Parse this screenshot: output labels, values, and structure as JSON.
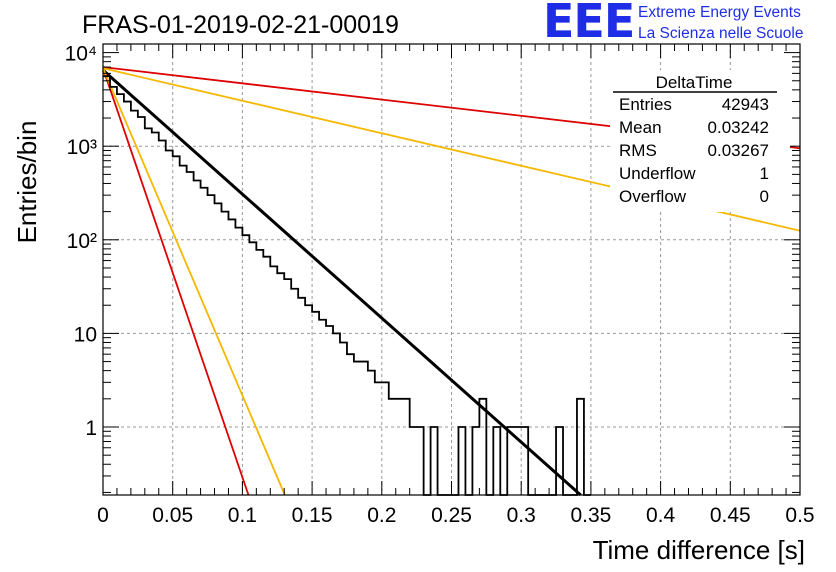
{
  "chart_data": {
    "type": "histogram",
    "title": "FRAS-01-2019-02-21-00019",
    "xlabel": "Time difference [s]",
    "ylabel": "Entries/bin",
    "xlim": [
      0,
      0.5
    ],
    "ylim": [
      0.17,
      12000
    ],
    "yscale": "log",
    "grid": true,
    "x_tick_labels": [
      "0",
      "0.05",
      "0.1",
      "0.15",
      "0.2",
      "0.25",
      "0.3",
      "0.35",
      "0.4",
      "0.45",
      "0.5"
    ],
    "y_tick_labels": [
      "1",
      "10",
      "10²",
      "10³",
      "10⁴"
    ],
    "stats_box": {
      "title": "DeltaTime",
      "placement": "top-right",
      "rows": [
        {
          "label": "Entries",
          "value": "42943"
        },
        {
          "label": "Mean",
          "value": "0.03242"
        },
        {
          "label": "RMS",
          "value": "0.03267"
        },
        {
          "label": "Underflow",
          "value": "1"
        },
        {
          "label": "Overflow",
          "value": "0"
        }
      ]
    },
    "histogram": {
      "color": "#000000",
      "bin_width": 0.005,
      "bins": [
        {
          "x": 0.0,
          "count": 5600
        },
        {
          "x": 0.005,
          "count": 4300
        },
        {
          "x": 0.01,
          "count": 3600
        },
        {
          "x": 0.015,
          "count": 3000
        },
        {
          "x": 0.02,
          "count": 2400
        },
        {
          "x": 0.025,
          "count": 2050
        },
        {
          "x": 0.03,
          "count": 1550
        },
        {
          "x": 0.035,
          "count": 1400
        },
        {
          "x": 0.04,
          "count": 1150
        },
        {
          "x": 0.045,
          "count": 900
        },
        {
          "x": 0.05,
          "count": 780
        },
        {
          "x": 0.055,
          "count": 620
        },
        {
          "x": 0.06,
          "count": 530
        },
        {
          "x": 0.065,
          "count": 430
        },
        {
          "x": 0.07,
          "count": 360
        },
        {
          "x": 0.075,
          "count": 300
        },
        {
          "x": 0.08,
          "count": 245
        },
        {
          "x": 0.085,
          "count": 200
        },
        {
          "x": 0.09,
          "count": 165
        },
        {
          "x": 0.095,
          "count": 135
        },
        {
          "x": 0.1,
          "count": 112
        },
        {
          "x": 0.105,
          "count": 94
        },
        {
          "x": 0.11,
          "count": 78
        },
        {
          "x": 0.115,
          "count": 66
        },
        {
          "x": 0.12,
          "count": 52
        },
        {
          "x": 0.125,
          "count": 44
        },
        {
          "x": 0.13,
          "count": 38
        },
        {
          "x": 0.135,
          "count": 30
        },
        {
          "x": 0.14,
          "count": 24
        },
        {
          "x": 0.145,
          "count": 20
        },
        {
          "x": 0.15,
          "count": 17
        },
        {
          "x": 0.155,
          "count": 14
        },
        {
          "x": 0.16,
          "count": 12
        },
        {
          "x": 0.165,
          "count": 10
        },
        {
          "x": 0.17,
          "count": 8
        },
        {
          "x": 0.175,
          "count": 6
        },
        {
          "x": 0.18,
          "count": 5
        },
        {
          "x": 0.185,
          "count": 5
        },
        {
          "x": 0.19,
          "count": 4
        },
        {
          "x": 0.195,
          "count": 3
        },
        {
          "x": 0.2,
          "count": 3
        },
        {
          "x": 0.205,
          "count": 2
        },
        {
          "x": 0.21,
          "count": 2
        },
        {
          "x": 0.215,
          "count": 2
        },
        {
          "x": 0.22,
          "count": 1
        },
        {
          "x": 0.225,
          "count": 1
        },
        {
          "x": 0.23,
          "count": 0
        },
        {
          "x": 0.235,
          "count": 1
        },
        {
          "x": 0.24,
          "count": 0
        },
        {
          "x": 0.245,
          "count": 0
        },
        {
          "x": 0.25,
          "count": 0
        },
        {
          "x": 0.255,
          "count": 1
        },
        {
          "x": 0.26,
          "count": 0
        },
        {
          "x": 0.265,
          "count": 1
        },
        {
          "x": 0.27,
          "count": 2
        },
        {
          "x": 0.275,
          "count": 0
        },
        {
          "x": 0.28,
          "count": 1
        },
        {
          "x": 0.285,
          "count": 0
        },
        {
          "x": 0.29,
          "count": 1
        },
        {
          "x": 0.295,
          "count": 1
        },
        {
          "x": 0.3,
          "count": 1
        },
        {
          "x": 0.305,
          "count": 0
        },
        {
          "x": 0.31,
          "count": 0
        },
        {
          "x": 0.315,
          "count": 0
        },
        {
          "x": 0.32,
          "count": 0
        },
        {
          "x": 0.325,
          "count": 1
        },
        {
          "x": 0.33,
          "count": 0
        },
        {
          "x": 0.335,
          "count": 0
        },
        {
          "x": 0.34,
          "count": 2
        },
        {
          "x": 0.345,
          "count": 0
        }
      ]
    },
    "fit_lines": [
      {
        "color": "#000000",
        "x": [
          0.0,
          0.35
        ],
        "y": [
          6500,
          0.15
        ]
      },
      {
        "color": "#dd0000",
        "x": [
          0.0,
          0.5
        ],
        "y": [
          7000,
          950
        ]
      },
      {
        "color": "#f5b800",
        "x": [
          0.0,
          0.5
        ],
        "y": [
          6800,
          125
        ]
      },
      {
        "color": "#dd0000",
        "x": [
          0.0,
          0.108
        ],
        "y": [
          6800,
          0.13
        ]
      },
      {
        "color": "#f5b800",
        "x": [
          0.0,
          0.135
        ],
        "y": [
          6800,
          0.13
        ]
      }
    ]
  }
}
